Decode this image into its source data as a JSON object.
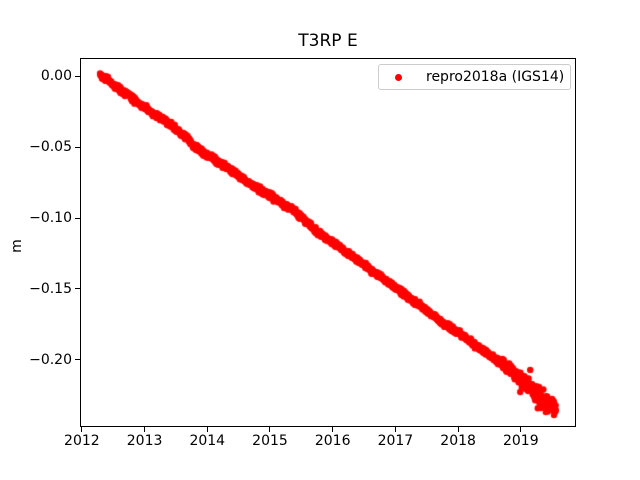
{
  "title": "T3RP E",
  "ylabel": "m",
  "legend": {
    "label": "repro2018a (IGS14)",
    "marker_color": "#ff0000",
    "border_color": "#cccccc"
  },
  "chart_data": {
    "type": "scatter",
    "title": "T3RP E",
    "xlabel": "",
    "ylabel": "m",
    "xlim": [
      2011.97,
      2019.88
    ],
    "ylim": [
      -0.2472,
      0.0127
    ],
    "grid": false,
    "legend_position": "upper right",
    "background": "#ffffff",
    "xticks": {
      "values": [
        2012,
        2013,
        2014,
        2015,
        2016,
        2017,
        2018,
        2019
      ],
      "labels": [
        "2012",
        "2013",
        "2014",
        "2015",
        "2016",
        "2017",
        "2018",
        "2019"
      ]
    },
    "yticks": {
      "values": [
        0.0,
        -0.05,
        -0.1,
        -0.15,
        -0.2
      ],
      "labels": [
        "0.00",
        "−0.05",
        "−0.10",
        "−0.15",
        "−0.20"
      ]
    },
    "series": [
      {
        "name": "repro2018a (IGS14)",
        "color": "#ff0000",
        "marker_size": 3.2,
        "points_per_year": 230,
        "noise": {
          "base_std_m": 0.001,
          "late_start_year": 2018.6,
          "late_std_m": 0.003
        },
        "summary": {
          "start_year": 2012.29,
          "end_year": 2019.56,
          "start_value_m": 0.001,
          "end_value_m": -0.233,
          "slope_m_per_year": -0.0322
        },
        "trend_anchors": [
          [
            2012.29,
            0.001
          ],
          [
            2012.38,
            -0.0015
          ],
          [
            2012.5,
            -0.006
          ],
          [
            2012.62,
            -0.01
          ],
          [
            2012.75,
            -0.0135
          ],
          [
            2012.88,
            -0.0185
          ],
          [
            2013.0,
            -0.0225
          ],
          [
            2013.15,
            -0.027
          ],
          [
            2013.3,
            -0.0305
          ],
          [
            2013.45,
            -0.0355
          ],
          [
            2013.6,
            -0.0415
          ],
          [
            2013.68,
            -0.0435
          ],
          [
            2013.74,
            -0.047
          ],
          [
            2013.8,
            -0.05
          ],
          [
            2013.95,
            -0.0545
          ],
          [
            2014.1,
            -0.058
          ],
          [
            2014.25,
            -0.0625
          ],
          [
            2014.4,
            -0.0665
          ],
          [
            2014.55,
            -0.072
          ],
          [
            2014.7,
            -0.0765
          ],
          [
            2014.85,
            -0.0805
          ],
          [
            2015.0,
            -0.084
          ],
          [
            2015.15,
            -0.0885
          ],
          [
            2015.3,
            -0.0925
          ],
          [
            2015.45,
            -0.0975
          ],
          [
            2015.6,
            -0.103
          ],
          [
            2015.75,
            -0.11
          ],
          [
            2015.9,
            -0.114
          ],
          [
            2016.05,
            -0.1185
          ],
          [
            2016.2,
            -0.1235
          ],
          [
            2016.35,
            -0.1285
          ],
          [
            2016.5,
            -0.133
          ],
          [
            2016.65,
            -0.138
          ],
          [
            2016.8,
            -0.1425
          ],
          [
            2016.95,
            -0.1475
          ],
          [
            2017.1,
            -0.152
          ],
          [
            2017.25,
            -0.157
          ],
          [
            2017.4,
            -0.162
          ],
          [
            2017.55,
            -0.167
          ],
          [
            2017.7,
            -0.172
          ],
          [
            2017.85,
            -0.1765
          ],
          [
            2018.0,
            -0.1805
          ],
          [
            2018.15,
            -0.1855
          ],
          [
            2018.3,
            -0.1905
          ],
          [
            2018.45,
            -0.195
          ],
          [
            2018.6,
            -0.1995
          ],
          [
            2018.75,
            -0.204
          ],
          [
            2018.9,
            -0.209
          ],
          [
            2019.0,
            -0.214
          ],
          [
            2019.1,
            -0.2165
          ],
          [
            2019.2,
            -0.222
          ],
          [
            2019.3,
            -0.227
          ],
          [
            2019.4,
            -0.2295
          ],
          [
            2019.5,
            -0.232
          ],
          [
            2019.56,
            -0.233
          ]
        ],
        "outliers": [
          [
            2019.27,
            -0.234
          ],
          [
            2018.99,
            -0.2225
          ],
          [
            2019.15,
            -0.207
          ]
        ]
      }
    ]
  }
}
